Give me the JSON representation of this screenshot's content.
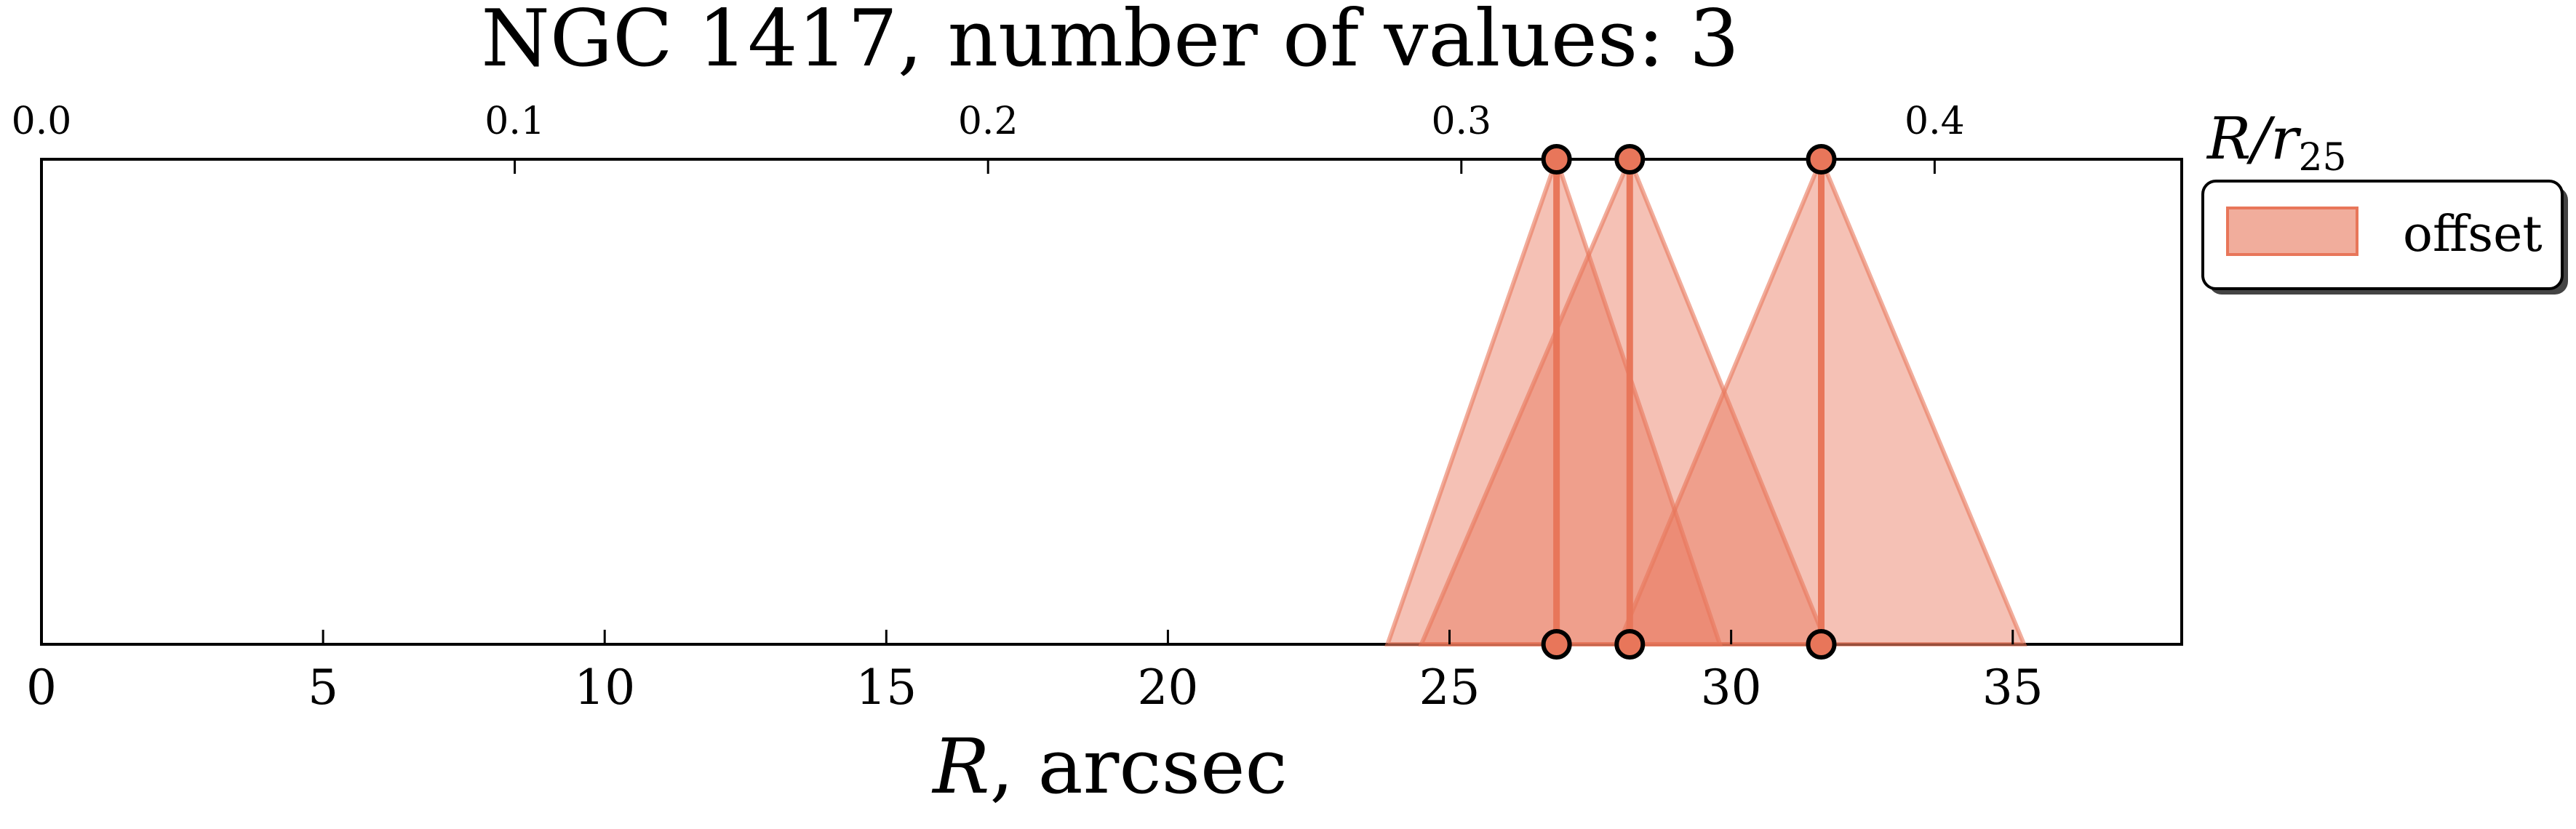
{
  "chart_data": {
    "type": "area",
    "title": "NGC 1417, number of values: 3",
    "xlabel": "R, arcsec",
    "xlabel_parts": {
      "var": "R",
      "rest": ", arcsec"
    },
    "x2label": "R/r25",
    "x2label_parts": {
      "var": "R/r",
      "sub": "25"
    },
    "xlim": [
      0,
      38
    ],
    "xticks": [
      0,
      5,
      10,
      15,
      20,
      25,
      30,
      35
    ],
    "x2lim": [
      0.0,
      0.4522
    ],
    "x2ticks": [
      0.0,
      0.1,
      0.2,
      0.3,
      0.4
    ],
    "x2tick_labels": [
      "0.0",
      "0.1",
      "0.2",
      "0.3",
      "0.4"
    ],
    "ylim": [
      0,
      1
    ],
    "grid": false,
    "legend": {
      "entries": [
        "offset"
      ],
      "placement": "outside-right"
    },
    "series": [
      {
        "name": "offset",
        "color": "#e8765a",
        "values": [
          {
            "x": 26.9,
            "spread_left": 3.0,
            "spread_right": 2.9
          },
          {
            "x": 28.2,
            "spread_left": 3.7,
            "spread_right": 3.5
          },
          {
            "x": 31.6,
            "spread_left": 3.6,
            "spread_right": 3.6
          }
        ]
      }
    ]
  }
}
